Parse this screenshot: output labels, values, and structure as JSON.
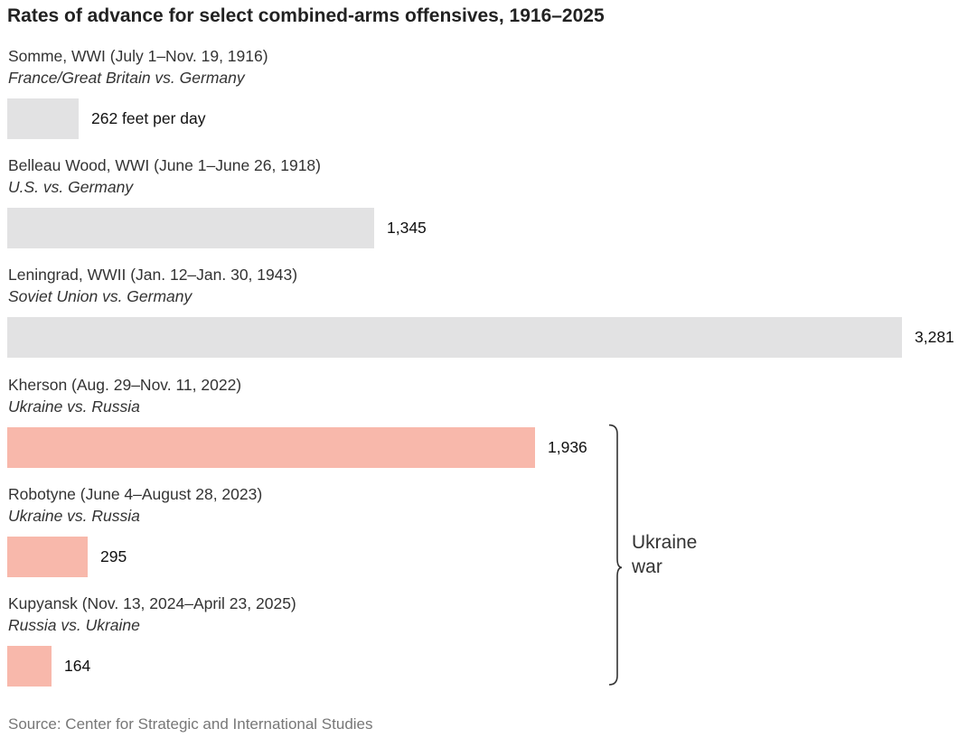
{
  "chart_data": {
    "type": "bar",
    "orientation": "horizontal",
    "title": "Rates of advance for select combined-arms offensives, 1916–2025",
    "unit_label": "feet per day",
    "rows": [
      {
        "name": "Somme, WWI (July 1–Nov. 19, 1916)",
        "sides": "France/Great Britain vs. Germany",
        "value": 262,
        "value_label": "262 feet per day",
        "color": "#e2e2e3"
      },
      {
        "name": "Belleau Wood, WWI (June 1–June 26, 1918)",
        "sides": "U.S. vs. Germany",
        "value": 1345,
        "value_label": "1,345",
        "color": "#e2e2e3"
      },
      {
        "name": "Leningrad, WWII (Jan. 12–Jan. 30, 1943)",
        "sides": "Soviet Union vs. Germany",
        "value": 3281,
        "value_label": "3,281",
        "color": "#e2e2e3"
      },
      {
        "name": "Kherson (Aug. 29–Nov. 11, 2022)",
        "sides": "Ukraine vs. Russia",
        "value": 1936,
        "value_label": "1,936",
        "color": "#f8b8ab"
      },
      {
        "name": "Robotyne (June 4–August 28, 2023)",
        "sides": "Ukraine vs. Russia",
        "value": 295,
        "value_label": "295",
        "color": "#f8b8ab"
      },
      {
        "name": "Kupyansk (Nov. 13, 2024–April 23, 2025)",
        "sides": "Russia vs. Ukraine",
        "value": 164,
        "value_label": "164",
        "color": "#f8b8ab"
      }
    ],
    "xlim": [
      0,
      3281
    ],
    "grid": false,
    "legend": "none",
    "group_bracket": {
      "label_line1": "Ukraine",
      "label_line2": "war",
      "rows": [
        3,
        4,
        5
      ],
      "color": "#333333"
    },
    "source": "Source: Center for Strategic and International Studies"
  }
}
